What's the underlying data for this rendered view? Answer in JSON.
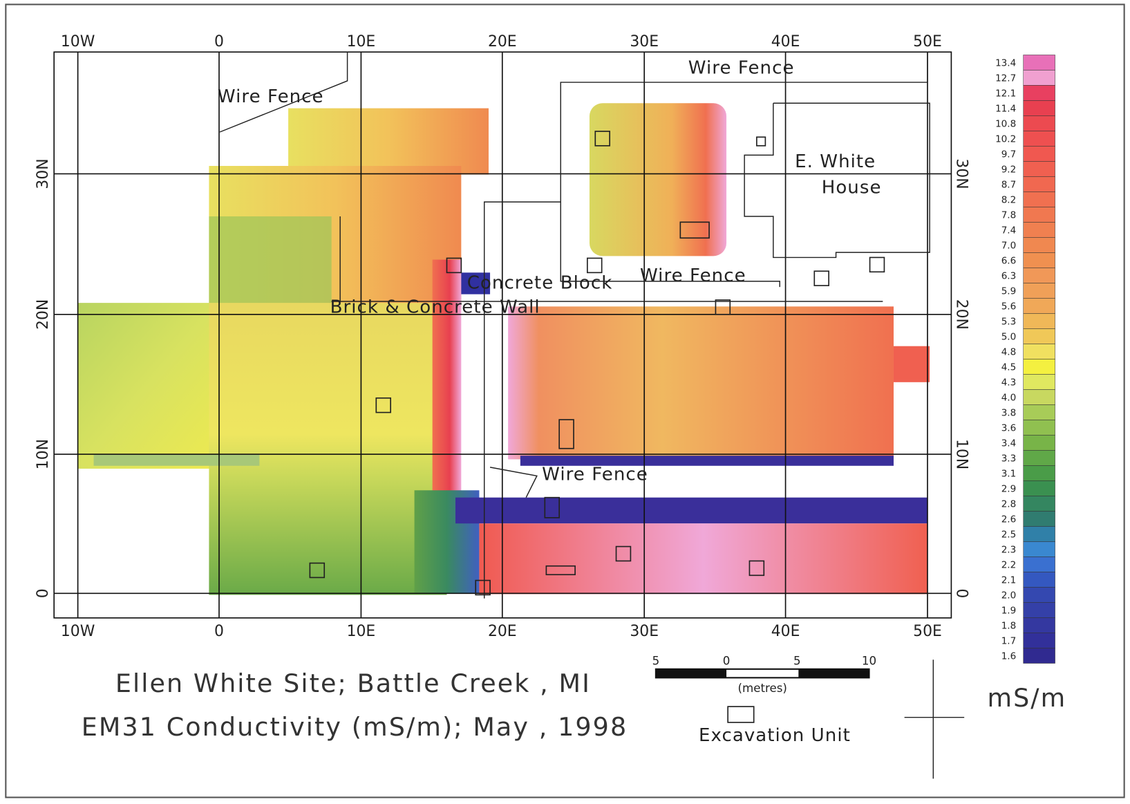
{
  "title_lines": [
    "Ellen White Site; Battle Creek , MI",
    "EM31 Conductivity (mS/m); May , 1998"
  ],
  "x_ticks": [
    "10W",
    "0",
    "10E",
    "20E",
    "30E",
    "40E",
    "50E"
  ],
  "y_ticks": [
    "0",
    "10N",
    "20N",
    "30N"
  ],
  "labels": {
    "fence_top": "Wire Fence",
    "fence_left": "Wire Fence",
    "fence_mid": "Wire Fence",
    "fence_low": "Wire Fence",
    "block": "Concrete Block",
    "wall": "Brick & Concrete Wall",
    "house_1": "E. White",
    "house_2": "House"
  },
  "scale_bar": {
    "ticks": [
      "5",
      "0",
      "5",
      "10"
    ],
    "unit": "(metres)"
  },
  "excavation_legend": "Excavation Unit",
  "color_scale": {
    "unit": "mS/m",
    "levels": [
      "13.4",
      "12.7",
      "12.1",
      "11.4",
      "10.8",
      "10.2",
      "9.7",
      "9.2",
      "8.7",
      "8.2",
      "7.8",
      "7.4",
      "7.0",
      "6.6",
      "6.3",
      "5.9",
      "5.6",
      "5.3",
      "5.0",
      "4.8",
      "4.5",
      "4.3",
      "4.0",
      "3.8",
      "3.6",
      "3.4",
      "3.3",
      "3.1",
      "2.9",
      "2.8",
      "2.6",
      "2.5",
      "2.3",
      "2.2",
      "2.1",
      "2.0",
      "1.9",
      "1.8",
      "1.7",
      "1.6"
    ]
  }
}
